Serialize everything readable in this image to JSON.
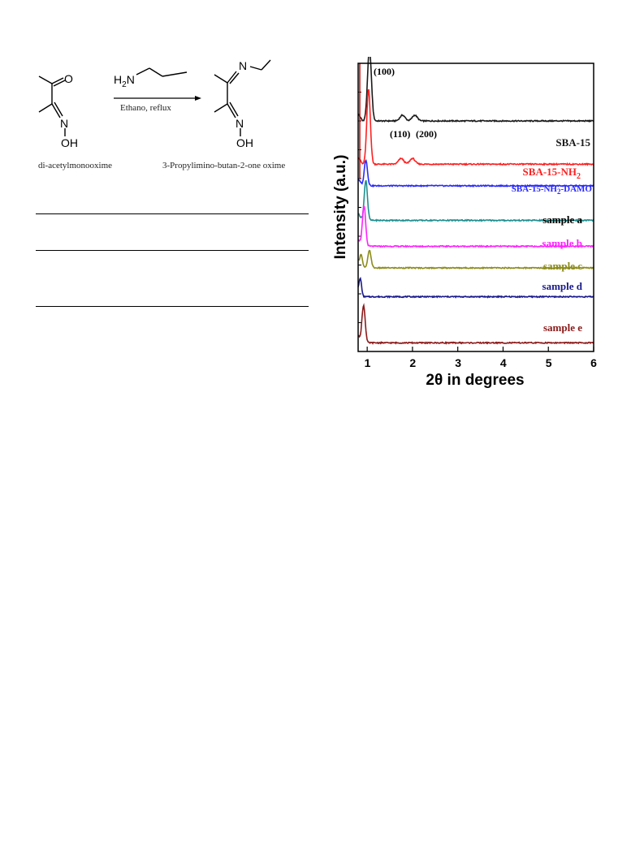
{
  "scheme": {
    "reactant_name": "di-acetylmonooxime",
    "reagent": "H2N",
    "conditions": "Ethano, reflux",
    "product_name": "3-Propylimino-butan-2-one oxime",
    "atoms": {
      "oxygen": "O",
      "nitrogen": "N",
      "hydroxyl": "OH",
      "hydrogen": "H",
      "subscript_2": "2"
    }
  },
  "table_rules_count": 3,
  "chart_data": {
    "type": "line",
    "xlabel": "2θ in degrees",
    "ylabel": "Intensity (a.u.)",
    "xlim": [
      0.8,
      6
    ],
    "x_ticks": [
      "1",
      "2",
      "3",
      "4",
      "5",
      "6"
    ],
    "grid": false,
    "series": [
      {
        "name": "SBA-15",
        "color": "#1a1a1a",
        "baseline": 0.8,
        "peaks": [
          [
            1.05,
            0.25,
            0.06
          ],
          [
            1.78,
            0.02,
            0.08
          ],
          [
            2.05,
            0.02,
            0.08
          ]
        ]
      },
      {
        "name": "SBA-15-NH2",
        "color": "#ff2020",
        "baseline": 0.65,
        "peaks": [
          [
            1.03,
            0.26,
            0.055
          ],
          [
            1.75,
            0.02,
            0.08
          ],
          [
            2.0,
            0.02,
            0.08
          ]
        ]
      },
      {
        "name": "SBA-15-NH2-DAMO",
        "color": "#2a2aff",
        "baseline": 0.575,
        "peaks": [
          [
            0.97,
            0.09,
            0.05
          ]
        ]
      },
      {
        "name": "sample a",
        "color": "#1f8f8f",
        "baseline": 0.455,
        "peaks": [
          [
            0.97,
            0.14,
            0.05
          ]
        ]
      },
      {
        "name": "sample b",
        "color": "#ff22ff",
        "baseline": 0.365,
        "peaks": [
          [
            0.93,
            0.14,
            0.05
          ]
        ]
      },
      {
        "name": "sample c",
        "color": "#8c8c1a",
        "baseline": 0.29,
        "peaks": [
          [
            0.87,
            0.04,
            0.04
          ],
          [
            1.05,
            0.06,
            0.05
          ]
        ]
      },
      {
        "name": "sample d",
        "color": "#1a1a8c",
        "baseline": 0.19,
        "peaks": [
          [
            0.85,
            0.05,
            0.04
          ]
        ]
      },
      {
        "name": "sample e",
        "color": "#8c1a1a",
        "baseline": 0.03,
        "peaks": [
          [
            0.92,
            0.13,
            0.05
          ]
        ]
      }
    ],
    "peak_labels": [
      "(100)",
      "(110)",
      "(200)"
    ],
    "series_labels": [
      "SBA-15",
      "SBA-15-NH",
      "2",
      "SBA-15-NH",
      "2",
      "-DAMO",
      "sample a",
      "sample b",
      "sample c",
      "sample d",
      "sample e"
    ]
  }
}
